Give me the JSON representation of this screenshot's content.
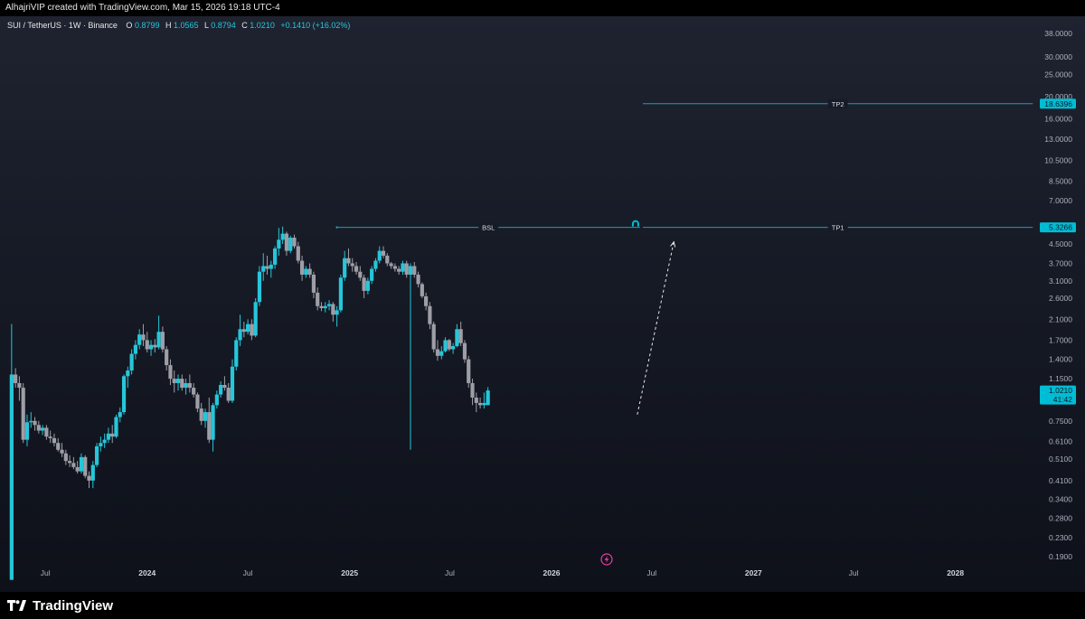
{
  "header": {
    "created_line": "AlhajriVIP created with TradingView.com, Mar 15, 2026 19:18 UTC-4"
  },
  "legend": {
    "symbol": "SUI / TetherUS · 1W · Binance",
    "open_label": "O",
    "open": "0.8799",
    "high_label": "H",
    "high": "1.0565",
    "low_label": "L",
    "low": "0.8794",
    "close_label": "C",
    "close": "1.0210",
    "change": "+0.1410 (+16.02%)"
  },
  "colors": {
    "up": "#26c6da",
    "down": "#9e9ea6",
    "accent": "#00bcd4",
    "annotation_line": "#1e9bb8",
    "axis_text": "#aab0bc",
    "label_text": "#0d1620"
  },
  "price_axis": {
    "scale": "log",
    "ticks": [
      "38.0000",
      "30.0000",
      "25.0000",
      "20.0000",
      "16.0000",
      "13.0000",
      "10.5000",
      "8.5000",
      "7.0000",
      "4.5000",
      "3.7000",
      "3.1000",
      "2.6000",
      "2.1000",
      "1.7000",
      "1.4000",
      "1.1500",
      "0.7500",
      "0.6100",
      "0.5100",
      "0.4100",
      "0.3400",
      "0.2800",
      "0.2300",
      "0.1900"
    ],
    "current_price": "1.0210",
    "countdown": "41:42",
    "tp1_value": "5.3266",
    "tp2_value": "18.6396"
  },
  "time_axis": {
    "labels": [
      {
        "text": "Jul",
        "date": "2023-07-01",
        "bold": false
      },
      {
        "text": "2024",
        "date": "2024-01-01",
        "bold": true
      },
      {
        "text": "Jul",
        "date": "2024-07-01",
        "bold": false
      },
      {
        "text": "2025",
        "date": "2025-01-01",
        "bold": true
      },
      {
        "text": "Jul",
        "date": "2025-07-01",
        "bold": false
      },
      {
        "text": "2026",
        "date": "2026-01-01",
        "bold": true
      },
      {
        "text": "Jul",
        "date": "2026-07-01",
        "bold": false
      },
      {
        "text": "2027",
        "date": "2027-01-01",
        "bold": true
      },
      {
        "text": "Jul",
        "date": "2027-07-01",
        "bold": false
      },
      {
        "text": "2028",
        "date": "2028-01-01",
        "bold": true
      }
    ]
  },
  "annotations": {
    "bsl": {
      "label": "BSL",
      "price": 5.3266,
      "start_date": "2024-12-09",
      "end_date": "2026-06-10"
    },
    "tp1": {
      "label": "TP1",
      "price": 5.3266,
      "start_date": "2026-06-15",
      "end_date": "2028-05-20"
    },
    "tp2": {
      "label": "TP2",
      "price": 18.6396,
      "start_date": "2026-06-15",
      "end_date": "2028-05-20"
    },
    "projection": {
      "from_date": "2026-06-05",
      "from_price": 0.8,
      "to_date": "2026-08-10",
      "to_price": 4.6
    },
    "magnet_icon": "magnet-icon",
    "flash_icon": "lightning-icon"
  },
  "chart_data": {
    "type": "candlestick",
    "title": "SUI / TetherUS · 1W · Binance",
    "xlabel": "",
    "ylabel": "",
    "y_scale": "log",
    "ylim": [
      0.17,
      42
    ],
    "xlim": [
      "2023-04-10",
      "2028-05-26"
    ],
    "grid": false,
    "interval": "1W",
    "first_date": "2023-05-01",
    "candles": [
      [
        0.15,
        2.0,
        0.15,
        1.2
      ],
      [
        1.2,
        1.28,
        1.05,
        1.1
      ],
      [
        1.1,
        1.18,
        0.92,
        1.05
      ],
      [
        1.05,
        1.1,
        0.6,
        0.62
      ],
      [
        0.62,
        0.8,
        0.58,
        0.74
      ],
      [
        0.74,
        0.82,
        0.7,
        0.75
      ],
      [
        0.75,
        0.78,
        0.68,
        0.72
      ],
      [
        0.72,
        0.75,
        0.66,
        0.68
      ],
      [
        0.68,
        0.72,
        0.65,
        0.7
      ],
      [
        0.7,
        0.72,
        0.62,
        0.64
      ],
      [
        0.64,
        0.68,
        0.6,
        0.63
      ],
      [
        0.63,
        0.66,
        0.58,
        0.6
      ],
      [
        0.6,
        0.63,
        0.55,
        0.56
      ],
      [
        0.56,
        0.6,
        0.52,
        0.54
      ],
      [
        0.54,
        0.56,
        0.48,
        0.5
      ],
      [
        0.5,
        0.53,
        0.47,
        0.49
      ],
      [
        0.49,
        0.52,
        0.46,
        0.47
      ],
      [
        0.47,
        0.5,
        0.44,
        0.45
      ],
      [
        0.45,
        0.54,
        0.44,
        0.52
      ],
      [
        0.52,
        0.53,
        0.42,
        0.43
      ],
      [
        0.43,
        0.45,
        0.38,
        0.41
      ],
      [
        0.41,
        0.5,
        0.38,
        0.48
      ],
      [
        0.48,
        0.6,
        0.47,
        0.58
      ],
      [
        0.58,
        0.64,
        0.55,
        0.6
      ],
      [
        0.6,
        0.66,
        0.57,
        0.62
      ],
      [
        0.62,
        0.7,
        0.6,
        0.66
      ],
      [
        0.66,
        0.72,
        0.6,
        0.64
      ],
      [
        0.64,
        0.8,
        0.63,
        0.78
      ],
      [
        0.78,
        0.86,
        0.74,
        0.82
      ],
      [
        0.82,
        1.2,
        0.8,
        1.18
      ],
      [
        1.18,
        1.3,
        1.05,
        1.25
      ],
      [
        1.25,
        1.55,
        1.2,
        1.48
      ],
      [
        1.48,
        1.7,
        1.4,
        1.62
      ],
      [
        1.62,
        1.9,
        1.55,
        1.8
      ],
      [
        1.8,
        2.0,
        1.6,
        1.7
      ],
      [
        1.7,
        1.85,
        1.5,
        1.55
      ],
      [
        1.55,
        1.7,
        1.45,
        1.62
      ],
      [
        1.62,
        1.72,
        1.5,
        1.58
      ],
      [
        1.58,
        2.18,
        1.55,
        1.85
      ],
      [
        1.85,
        1.95,
        1.5,
        1.55
      ],
      [
        1.55,
        1.6,
        1.25,
        1.32
      ],
      [
        1.32,
        1.4,
        1.08,
        1.15
      ],
      [
        1.15,
        1.25,
        1.0,
        1.1
      ],
      [
        1.1,
        1.2,
        1.02,
        1.15
      ],
      [
        1.15,
        1.2,
        1.02,
        1.05
      ],
      [
        1.05,
        1.15,
        0.98,
        1.1
      ],
      [
        1.1,
        1.2,
        1.0,
        1.05
      ],
      [
        1.05,
        1.1,
        0.95,
        0.98
      ],
      [
        0.98,
        1.0,
        0.82,
        0.85
      ],
      [
        0.85,
        0.9,
        0.72,
        0.75
      ],
      [
        0.75,
        0.85,
        0.7,
        0.82
      ],
      [
        0.82,
        0.95,
        0.6,
        0.62
      ],
      [
        0.62,
        0.9,
        0.55,
        0.88
      ],
      [
        0.88,
        1.02,
        0.85,
        0.98
      ],
      [
        0.98,
        1.12,
        0.95,
        1.08
      ],
      [
        1.08,
        1.18,
        1.02,
        1.05
      ],
      [
        1.05,
        1.1,
        0.9,
        0.92
      ],
      [
        0.92,
        1.4,
        0.9,
        1.3
      ],
      [
        1.3,
        1.75,
        1.25,
        1.7
      ],
      [
        1.7,
        2.2,
        1.6,
        1.9
      ],
      [
        1.9,
        2.05,
        1.75,
        1.85
      ],
      [
        1.85,
        2.1,
        1.8,
        2.0
      ],
      [
        2.0,
        2.1,
        1.7,
        1.78
      ],
      [
        1.78,
        2.6,
        1.75,
        2.5
      ],
      [
        2.5,
        3.6,
        2.4,
        3.4
      ],
      [
        3.4,
        4.1,
        3.1,
        3.6
      ],
      [
        3.6,
        4.0,
        3.3,
        3.5
      ],
      [
        3.5,
        3.8,
        3.2,
        3.65
      ],
      [
        3.65,
        4.4,
        3.5,
        4.3
      ],
      [
        4.3,
        5.3,
        4.0,
        4.7
      ],
      [
        4.7,
        5.37,
        4.5,
        5.0
      ],
      [
        5.0,
        5.1,
        4.0,
        4.2
      ],
      [
        4.2,
        4.9,
        4.1,
        4.8
      ],
      [
        4.8,
        4.95,
        4.3,
        4.4
      ],
      [
        4.4,
        4.6,
        3.7,
        3.8
      ],
      [
        3.8,
        4.0,
        3.1,
        3.3
      ],
      [
        3.3,
        3.6,
        3.2,
        3.5
      ],
      [
        3.5,
        3.7,
        3.2,
        3.3
      ],
      [
        3.3,
        3.4,
        2.6,
        2.75
      ],
      [
        2.75,
        2.9,
        2.3,
        2.4
      ],
      [
        2.4,
        2.5,
        2.28,
        2.35
      ],
      [
        2.35,
        2.5,
        2.25,
        2.4
      ],
      [
        2.4,
        2.55,
        2.3,
        2.45
      ],
      [
        2.45,
        2.5,
        2.05,
        2.2
      ],
      [
        2.2,
        2.4,
        1.95,
        2.3
      ],
      [
        2.3,
        3.3,
        2.25,
        3.2
      ],
      [
        3.2,
        4.2,
        3.1,
        3.9
      ],
      [
        3.9,
        4.3,
        3.6,
        3.7
      ],
      [
        3.7,
        3.9,
        3.4,
        3.6
      ],
      [
        3.6,
        3.75,
        3.3,
        3.4
      ],
      [
        3.4,
        3.6,
        3.1,
        3.2
      ],
      [
        3.2,
        3.3,
        2.6,
        2.8
      ],
      [
        2.8,
        3.2,
        2.7,
        3.1
      ],
      [
        3.1,
        3.6,
        3.0,
        3.5
      ],
      [
        3.5,
        3.9,
        3.4,
        3.8
      ],
      [
        3.8,
        4.4,
        3.7,
        4.2
      ],
      [
        4.2,
        4.4,
        3.9,
        4.0
      ],
      [
        4.0,
        4.1,
        3.6,
        3.7
      ],
      [
        3.7,
        3.75,
        3.5,
        3.6
      ],
      [
        3.6,
        3.7,
        3.4,
        3.5
      ],
      [
        3.5,
        3.6,
        3.3,
        3.4
      ],
      [
        3.4,
        3.8,
        3.3,
        3.7
      ],
      [
        3.7,
        3.8,
        3.2,
        3.3
      ],
      [
        3.3,
        3.7,
        0.56,
        3.6
      ],
      [
        3.6,
        3.75,
        3.2,
        3.3
      ],
      [
        3.3,
        3.4,
        2.9,
        3.0
      ],
      [
        3.0,
        3.05,
        2.6,
        2.65
      ],
      [
        2.65,
        2.75,
        2.3,
        2.4
      ],
      [
        2.4,
        2.5,
        1.9,
        2.0
      ],
      [
        2.0,
        2.05,
        1.5,
        1.55
      ],
      [
        1.55,
        1.7,
        1.38,
        1.45
      ],
      [
        1.45,
        1.6,
        1.4,
        1.52
      ],
      [
        1.52,
        1.75,
        1.5,
        1.7
      ],
      [
        1.7,
        1.72,
        1.52,
        1.55
      ],
      [
        1.55,
        1.65,
        1.48,
        1.6
      ],
      [
        1.6,
        2.0,
        1.58,
        1.9
      ],
      [
        1.9,
        2.05,
        1.6,
        1.65
      ],
      [
        1.65,
        1.7,
        1.35,
        1.4
      ],
      [
        1.4,
        1.45,
        1.05,
        1.1
      ],
      [
        1.1,
        1.15,
        0.88,
        0.95
      ],
      [
        0.95,
        1.0,
        0.82,
        0.9
      ],
      [
        0.9,
        0.95,
        0.85,
        0.88
      ],
      [
        0.88,
        1.0,
        0.85,
        0.9
      ],
      [
        0.8799,
        1.0565,
        0.8794,
        1.021
      ]
    ]
  }
}
